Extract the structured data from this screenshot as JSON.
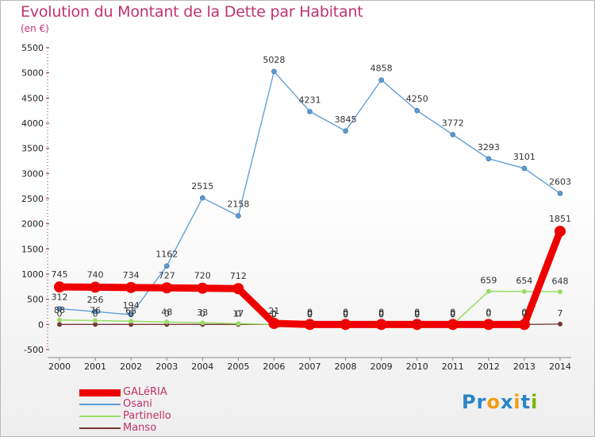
{
  "title": "Evolution du Montant de la Dette par Habitant",
  "subtitle": "(en €)",
  "logo": {
    "text": "Proxiti",
    "letters": [
      "P",
      "r",
      "o",
      "x",
      "i",
      "t",
      "i"
    ],
    "colors": [
      "#2a86c7",
      "#2a86c7",
      "#f39c12",
      "#2a86c7",
      "#f39c12",
      "#2a86c7",
      "#7ab800"
    ]
  },
  "chart_data": {
    "type": "line",
    "title": "Evolution du Montant de la Dette par Habitant",
    "ylabel": "(en €)",
    "x": [
      "2000",
      "2001",
      "2002",
      "2003",
      "2004",
      "2005",
      "2006",
      "2007",
      "2008",
      "2009",
      "2010",
      "2011",
      "2012",
      "2013",
      "2014"
    ],
    "ylim": [
      -500,
      5500
    ],
    "yticks": [
      "-500",
      "0",
      "500",
      "1000",
      "1500",
      "2000",
      "2500",
      "3000",
      "3500",
      "4000",
      "4500",
      "5000",
      "5500"
    ],
    "grid": false,
    "legend_position": "bottom-left",
    "series": [
      {
        "name": "GALéRIA",
        "color": "#ee0000",
        "values": [
          745,
          740,
          734,
          727,
          720,
          712,
          21,
          0,
          0,
          0,
          0,
          0,
          0,
          0,
          1851
        ],
        "labels": [
          "745",
          "740",
          "734",
          "727",
          "720",
          "712",
          "21",
          "0",
          "0",
          "0",
          "0",
          "0",
          "0",
          "0",
          "1851"
        ]
      },
      {
        "name": "Osani",
        "color": "#5b9bd5",
        "values": [
          312,
          256,
          194,
          1162,
          2515,
          2158,
          5028,
          4231,
          3845,
          4858,
          4250,
          3772,
          3293,
          3101,
          2603
        ],
        "labels": [
          "312",
          "256",
          "194",
          "1162",
          "2515",
          "2158",
          "5028",
          "4231",
          "3845",
          "4858",
          "4250",
          "3772",
          "3293",
          "3101",
          "2603"
        ]
      },
      {
        "name": "Partinello",
        "color": "#99dd66",
        "values": [
          88,
          76,
          65,
          48,
          33,
          17,
          0,
          0,
          0,
          0,
          0,
          0,
          659,
          654,
          648
        ],
        "labels": [
          "88",
          "76",
          "65",
          "48",
          "33",
          "17",
          "0",
          "0",
          "0",
          "0",
          "0",
          "0",
          "659",
          "654",
          "648"
        ]
      },
      {
        "name": "Manso",
        "color": "#7a3535",
        "values": [
          0,
          0,
          0,
          0,
          0,
          0,
          0,
          0,
          0,
          0,
          0,
          0,
          0,
          0,
          7
        ],
        "labels": [
          "0",
          "0",
          "0",
          "0",
          "0",
          "0",
          "0",
          "0",
          "0",
          "0",
          "0",
          "0",
          "0",
          "0",
          "7"
        ]
      }
    ]
  }
}
